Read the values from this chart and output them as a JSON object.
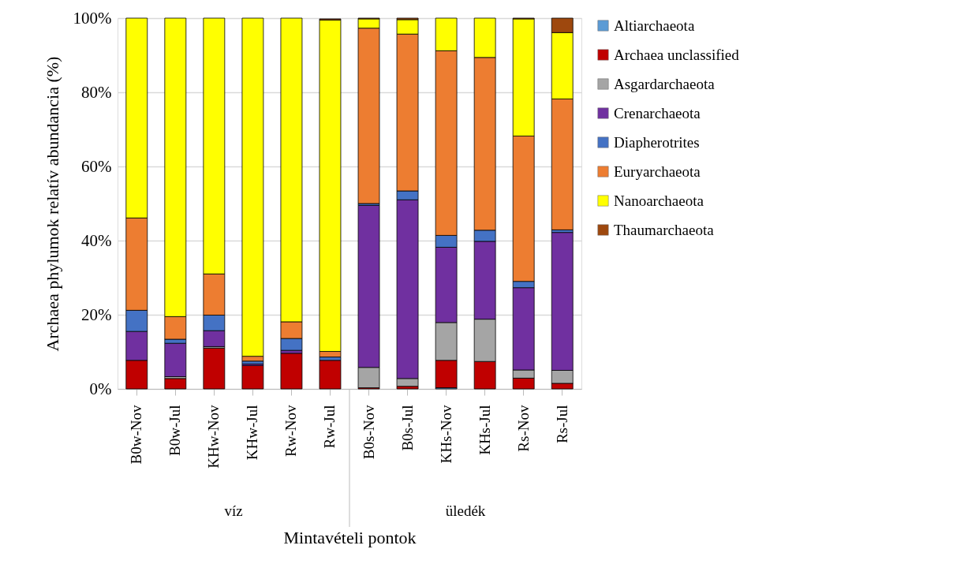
{
  "chart_data": {
    "type": "bar",
    "stacked": true,
    "xlabel": "Mintavételi pontok",
    "ylabel": "Archaea phylumok relatív abundancia (%)",
    "categories": [
      "B0w-Nov",
      "B0w-Jul",
      "KHw-Nov",
      "KHw-Jul",
      "Rw-Nov",
      "Rw-Jul",
      "B0s-Nov",
      "B0s-Jul",
      "KHs-Nov",
      "KHs-Jul",
      "Rs-Nov",
      "Rs-Jul"
    ],
    "series": [
      {
        "name": "Altiarchaeota",
        "color": "#5b9bd5",
        "values": [
          0,
          0,
          0,
          0,
          0,
          0,
          0,
          0,
          0.3,
          0,
          0,
          0
        ]
      },
      {
        "name": "Archaea unclassified",
        "color": "#c00000",
        "values": [
          7.7,
          2.8,
          11.0,
          6.3,
          9.6,
          7.7,
          0.3,
          0.7,
          7.4,
          7.4,
          2.9,
          1.5
        ]
      },
      {
        "name": "Asgardarchaeota",
        "color": "#a5a5a5",
        "values": [
          0,
          0.5,
          0.4,
          0,
          0,
          0,
          5.5,
          2.1,
          10.2,
          11.4,
          2.2,
          3.5
        ]
      },
      {
        "name": "Crenarchaeota",
        "color": "#7030a0",
        "values": [
          7.8,
          9.0,
          4.3,
          0.4,
          0.8,
          null,
          43.7,
          48.2,
          20.3,
          21.0,
          22.2,
          37.2
        ]
      },
      {
        "name": "Diapherotrites",
        "color": "#4472c4",
        "values": [
          5.7,
          1.1,
          4.2,
          0.8,
          3.2,
          0.9,
          0.5,
          2.4,
          3.2,
          3.0,
          1.7,
          0.7
        ]
      },
      {
        "name": "Euryarchaeota",
        "color": "#ed7d31",
        "values": [
          24.9,
          6.1,
          11.1,
          1.3,
          4.5,
          1.5,
          47.3,
          42.3,
          49.8,
          46.6,
          39.2,
          35.3
        ]
      },
      {
        "name": "Nanoarchaeota",
        "color": "#ffff00",
        "values": [
          53.9,
          80.5,
          69.0,
          91.2,
          81.9,
          89.4,
          2.5,
          3.9,
          8.8,
          10.6,
          31.6,
          17.9
        ]
      },
      {
        "name": "Thaumarchaeota",
        "color": "#9e480e",
        "values": [
          0,
          0,
          0,
          0,
          0,
          0.3,
          0.2,
          0.4,
          0,
          0,
          0.2,
          3.9
        ]
      }
    ],
    "ylim": [
      0,
      100
    ],
    "yticks": [
      {
        "value": 0,
        "label": "0%"
      },
      {
        "value": 20,
        "label": "20%"
      },
      {
        "value": 40,
        "label": "40%"
      },
      {
        "value": 60,
        "label": "60%"
      },
      {
        "value": 80,
        "label": "80%"
      },
      {
        "value": 100,
        "label": "100%"
      }
    ],
    "grid": "y",
    "legend": "right",
    "annotations": [
      "víz",
      "üledék"
    ]
  }
}
